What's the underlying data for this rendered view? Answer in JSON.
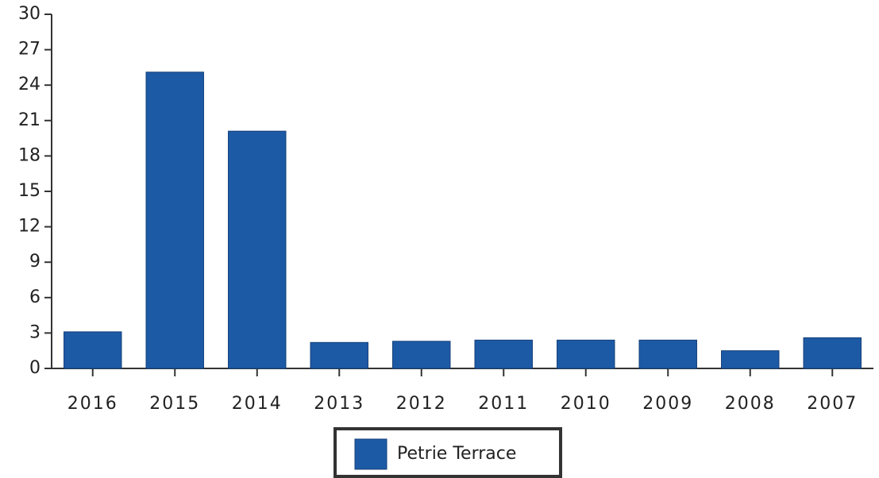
{
  "chart_data": {
    "type": "bar",
    "categories": [
      "2016",
      "2015",
      "2014",
      "2013",
      "2012",
      "2011",
      "2010",
      "2009",
      "2008",
      "2007"
    ],
    "series": [
      {
        "name": "Petrie Terrace",
        "color": "#1d5aa6",
        "values": [
          3.1,
          25.1,
          20.1,
          2.2,
          2.3,
          2.4,
          2.4,
          2.4,
          1.5,
          2.6
        ]
      }
    ],
    "ylim": [
      0,
      30
    ],
    "yticks": [
      0,
      3,
      6,
      9,
      12,
      15,
      18,
      21,
      24,
      27,
      30
    ],
    "grid": false
  }
}
